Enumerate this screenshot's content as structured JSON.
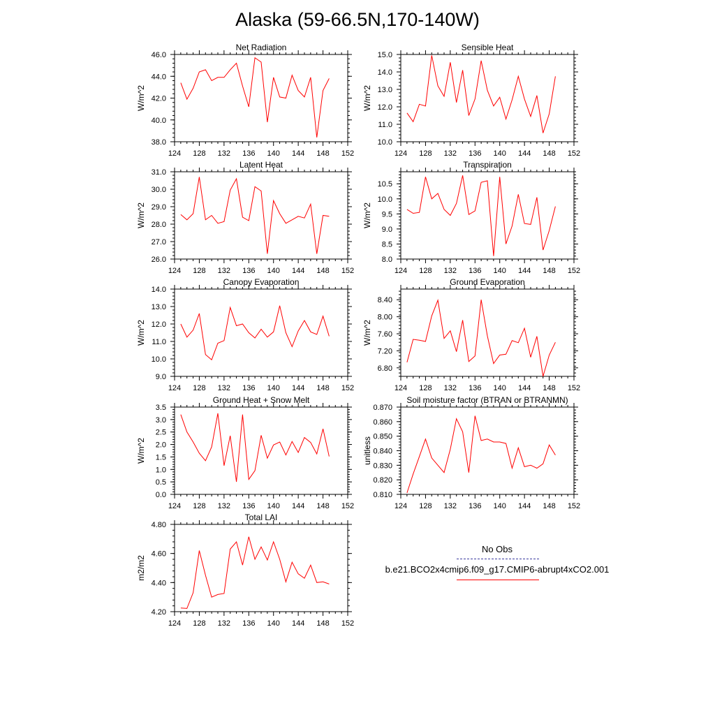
{
  "title": "Alaska (59-66.5N,170-140W)",
  "colors": {
    "model_line": "#ff0000",
    "obs_line": "#3a3aa0",
    "axis": "#000000"
  },
  "legend": {
    "obs_label": "No Obs",
    "model_label": "b.e21.BCO2x4cmip6.f09_g17.CMIP6-abrupt4xCO2.001"
  },
  "chart_data": [
    {
      "type": "line",
      "title": "Net Radiation",
      "xlabel": "",
      "ylabel": "W/m^2",
      "xlim": [
        124,
        152
      ],
      "ylim": [
        38.0,
        46.0
      ],
      "xticks": [
        "124",
        "128",
        "132",
        "136",
        "140",
        "144",
        "148",
        "152"
      ],
      "yticks": [
        "38.0",
        "40.0",
        "42.0",
        "44.0",
        "46.0"
      ],
      "x": [
        125,
        126,
        127,
        128,
        129,
        130,
        131,
        132,
        133,
        134,
        135,
        136,
        137,
        138,
        139,
        140,
        141,
        142,
        143,
        144,
        145,
        146,
        147,
        148,
        149
      ],
      "series": [
        {
          "values": [
            43.4,
            41.9,
            42.9,
            44.4,
            44.6,
            43.6,
            43.9,
            43.9,
            44.6,
            45.2,
            43.1,
            41.2,
            45.7,
            45.3,
            39.8,
            43.9,
            42.1,
            42.0,
            44.1,
            42.7,
            42.1,
            43.9,
            38.4,
            42.7,
            43.8
          ]
        }
      ]
    },
    {
      "type": "line",
      "title": "Sensible Heat",
      "xlabel": "",
      "ylabel": "W/m^2",
      "xlim": [
        124,
        152
      ],
      "ylim": [
        10.0,
        15.0
      ],
      "xticks": [
        "124",
        "128",
        "132",
        "136",
        "140",
        "144",
        "148",
        "152"
      ],
      "yticks": [
        "10.0",
        "11.0",
        "12.0",
        "13.0",
        "14.0",
        "15.0"
      ],
      "x": [
        125,
        126,
        127,
        128,
        129,
        130,
        131,
        132,
        133,
        134,
        135,
        136,
        137,
        138,
        139,
        140,
        141,
        142,
        143,
        144,
        145,
        146,
        147,
        148,
        149
      ],
      "series": [
        {
          "values": [
            11.65,
            11.15,
            12.15,
            12.05,
            14.95,
            13.2,
            12.6,
            14.55,
            12.25,
            14.1,
            11.5,
            12.45,
            14.65,
            12.95,
            12.05,
            12.55,
            11.3,
            12.4,
            13.75,
            12.45,
            11.45,
            12.65,
            10.5,
            11.6,
            13.75
          ]
        }
      ]
    },
    {
      "type": "line",
      "title": "Latent Heat",
      "xlabel": "",
      "ylabel": "W/m^2",
      "xlim": [
        124,
        152
      ],
      "ylim": [
        26.0,
        31.0
      ],
      "xticks": [
        "124",
        "128",
        "132",
        "136",
        "140",
        "144",
        "148",
        "152"
      ],
      "yticks": [
        "26.0",
        "27.0",
        "28.0",
        "29.0",
        "30.0",
        "31.0"
      ],
      "x": [
        125,
        126,
        127,
        128,
        129,
        130,
        131,
        132,
        133,
        134,
        135,
        136,
        137,
        138,
        139,
        140,
        141,
        142,
        143,
        144,
        145,
        146,
        147,
        148,
        149
      ],
      "series": [
        {
          "values": [
            28.55,
            28.25,
            28.6,
            30.7,
            28.25,
            28.5,
            28.05,
            28.15,
            29.95,
            30.6,
            28.4,
            28.2,
            30.15,
            29.9,
            26.3,
            29.35,
            28.6,
            28.05,
            28.25,
            28.45,
            28.35,
            29.15,
            26.3,
            28.5,
            28.45
          ]
        }
      ]
    },
    {
      "type": "line",
      "title": "Transpiration",
      "xlabel": "",
      "ylabel": "W/m^2",
      "xlim": [
        124,
        152
      ],
      "ylim": [
        8.0,
        10.9
      ],
      "xticks": [
        "124",
        "128",
        "132",
        "136",
        "140",
        "144",
        "148",
        "152"
      ],
      "yticks": [
        "8.0",
        "8.5",
        "9.0",
        "9.5",
        "10.0",
        "10.5"
      ],
      "x": [
        125,
        126,
        127,
        128,
        129,
        130,
        131,
        132,
        133,
        134,
        135,
        136,
        137,
        138,
        139,
        140,
        141,
        142,
        143,
        144,
        145,
        146,
        147,
        148,
        149
      ],
      "series": [
        {
          "values": [
            9.65,
            9.52,
            9.55,
            10.73,
            10.0,
            10.18,
            9.65,
            9.45,
            9.85,
            10.78,
            9.48,
            9.6,
            10.55,
            10.6,
            8.1,
            10.73,
            8.5,
            9.1,
            10.15,
            9.18,
            9.15,
            10.05,
            8.3,
            8.95,
            9.75
          ]
        }
      ]
    },
    {
      "type": "line",
      "title": "Canopy Evaporation",
      "xlabel": "",
      "ylabel": "W/m^2",
      "xlim": [
        124,
        152
      ],
      "ylim": [
        9.0,
        14.0
      ],
      "xticks": [
        "124",
        "128",
        "132",
        "136",
        "140",
        "144",
        "148",
        "152"
      ],
      "yticks": [
        "9.0",
        "10.0",
        "11.0",
        "12.0",
        "13.0",
        "14.0"
      ],
      "x": [
        125,
        126,
        127,
        128,
        129,
        130,
        131,
        132,
        133,
        134,
        135,
        136,
        137,
        138,
        139,
        140,
        141,
        142,
        143,
        144,
        145,
        146,
        147,
        148,
        149
      ],
      "series": [
        {
          "values": [
            12.0,
            11.25,
            11.65,
            12.6,
            10.25,
            9.95,
            10.9,
            11.05,
            12.95,
            11.9,
            12.0,
            11.5,
            11.2,
            11.7,
            11.25,
            11.55,
            13.05,
            11.5,
            10.7,
            11.6,
            12.2,
            11.55,
            11.4,
            12.45,
            11.3
          ]
        }
      ]
    },
    {
      "type": "line",
      "title": "Ground Evaporation",
      "xlabel": "",
      "ylabel": "W/m^2",
      "xlim": [
        124,
        152
      ],
      "ylim": [
        6.6,
        8.65
      ],
      "xticks": [
        "124",
        "128",
        "132",
        "136",
        "140",
        "144",
        "148",
        "152"
      ],
      "yticks": [
        "6.80",
        "7.20",
        "7.60",
        "8.00",
        "8.40"
      ],
      "x": [
        125,
        126,
        127,
        128,
        129,
        130,
        131,
        132,
        133,
        134,
        135,
        136,
        137,
        138,
        139,
        140,
        141,
        142,
        143,
        144,
        145,
        146,
        147,
        148,
        149
      ],
      "series": [
        {
          "values": [
            6.93,
            7.47,
            7.45,
            7.42,
            8.02,
            8.39,
            7.49,
            7.67,
            7.18,
            7.92,
            6.95,
            7.08,
            8.4,
            7.55,
            6.9,
            7.1,
            7.12,
            7.44,
            7.39,
            7.73,
            7.05,
            7.54,
            6.6,
            7.1,
            7.4
          ]
        }
      ]
    },
    {
      "type": "line",
      "title": "Ground Heat + Snow Melt",
      "xlabel": "",
      "ylabel": "W/m^2",
      "xlim": [
        124,
        152
      ],
      "ylim": [
        0.0,
        3.5
      ],
      "xticks": [
        "124",
        "128",
        "132",
        "136",
        "140",
        "144",
        "148",
        "152"
      ],
      "yticks": [
        "0.0",
        "0.5",
        "1.0",
        "1.5",
        "2.0",
        "2.5",
        "3.0",
        "3.5"
      ],
      "x": [
        125,
        126,
        127,
        128,
        129,
        130,
        131,
        132,
        133,
        134,
        135,
        136,
        137,
        138,
        139,
        140,
        141,
        142,
        143,
        144,
        145,
        146,
        147,
        148,
        149
      ],
      "series": [
        {
          "values": [
            3.2,
            2.5,
            2.1,
            1.65,
            1.35,
            1.9,
            3.25,
            1.15,
            2.35,
            0.5,
            3.2,
            0.6,
            0.95,
            2.37,
            1.45,
            1.98,
            2.1,
            1.58,
            2.12,
            1.68,
            2.28,
            2.08,
            1.62,
            2.63,
            1.52
          ]
        }
      ]
    },
    {
      "type": "line",
      "title": "Soil moisture factor (BTRAN or BTRANMN)",
      "xlabel": "",
      "ylabel": "unitless",
      "xlim": [
        124,
        152
      ],
      "ylim": [
        0.81,
        0.87
      ],
      "xticks": [
        "124",
        "128",
        "132",
        "136",
        "140",
        "144",
        "148",
        "152"
      ],
      "yticks": [
        "0.810",
        "0.820",
        "0.830",
        "0.840",
        "0.850",
        "0.860",
        "0.870"
      ],
      "x": [
        125,
        126,
        127,
        128,
        129,
        130,
        131,
        132,
        133,
        134,
        135,
        136,
        137,
        138,
        139,
        140,
        141,
        142,
        143,
        144,
        145,
        146,
        147,
        148,
        149
      ],
      "series": [
        {
          "values": [
            0.811,
            0.824,
            0.836,
            0.848,
            0.835,
            0.83,
            0.825,
            0.841,
            0.862,
            0.853,
            0.825,
            0.864,
            0.847,
            0.848,
            0.846,
            0.846,
            0.845,
            0.828,
            0.842,
            0.829,
            0.83,
            0.828,
            0.831,
            0.844,
            0.837
          ]
        }
      ]
    },
    {
      "type": "line",
      "title": "Total LAI",
      "xlabel": "",
      "ylabel": "m2/m2",
      "xlim": [
        124,
        152
      ],
      "ylim": [
        4.2,
        4.8
      ],
      "xticks": [
        "124",
        "128",
        "132",
        "136",
        "140",
        "144",
        "148",
        "152"
      ],
      "yticks": [
        "4.20",
        "4.40",
        "4.60",
        "4.80"
      ],
      "x": [
        125,
        126,
        127,
        128,
        129,
        130,
        131,
        132,
        133,
        134,
        135,
        136,
        137,
        138,
        139,
        140,
        141,
        142,
        143,
        144,
        145,
        146,
        147,
        148,
        149
      ],
      "series": [
        {
          "values": [
            4.225,
            4.222,
            4.33,
            4.62,
            4.45,
            4.3,
            4.318,
            4.325,
            4.63,
            4.68,
            4.52,
            4.715,
            4.56,
            4.645,
            4.555,
            4.68,
            4.56,
            4.405,
            4.54,
            4.46,
            4.43,
            4.52,
            4.4,
            4.405,
            4.39
          ]
        }
      ]
    }
  ]
}
